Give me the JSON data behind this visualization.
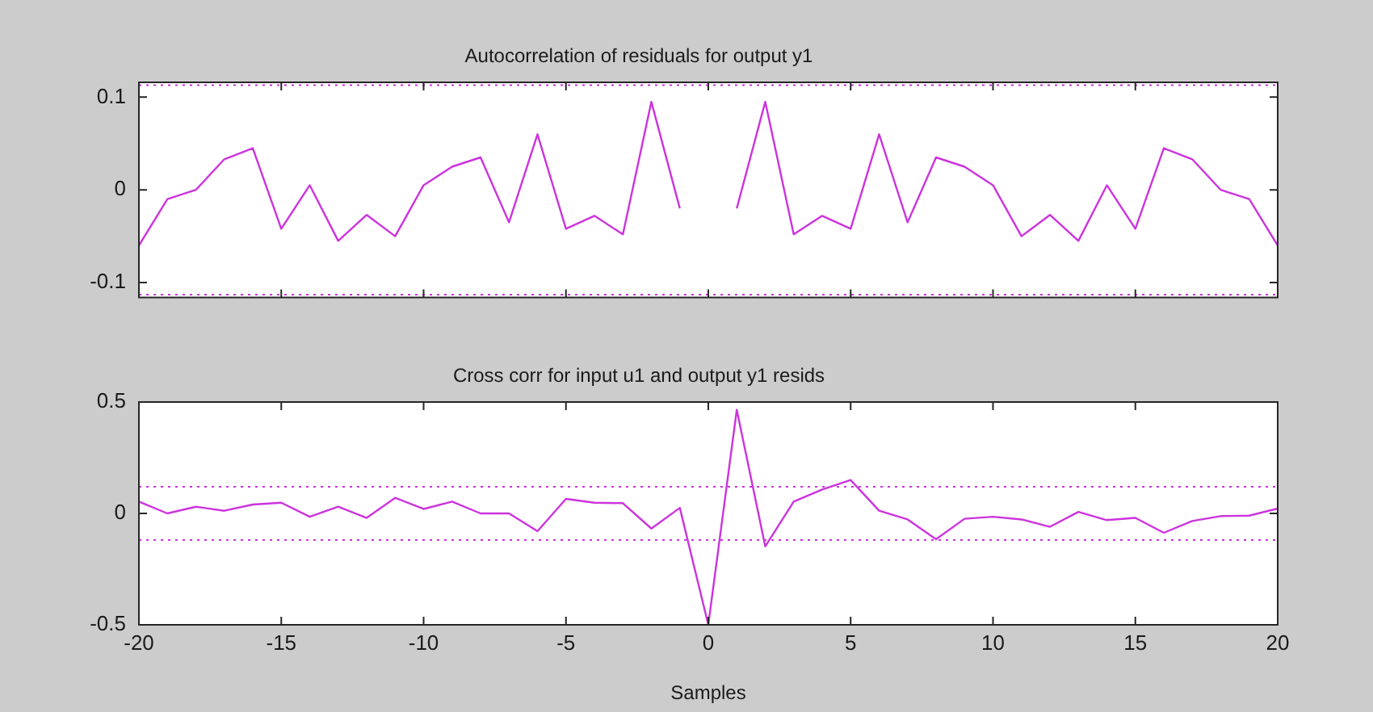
{
  "chart_data": [
    {
      "type": "line",
      "title": "Autocorrelation of residuals for output y1",
      "x": [
        -20,
        -19,
        -18,
        -17,
        -16,
        -15,
        -14,
        -13,
        -12,
        -11,
        -10,
        -9,
        -8,
        -7,
        -6,
        -5,
        -4,
        -3,
        -2,
        -1,
        0,
        1,
        2,
        3,
        4,
        5,
        6,
        7,
        8,
        9,
        10,
        11,
        12,
        13,
        14,
        15,
        16,
        17,
        18,
        19,
        20
      ],
      "series": [
        {
          "color": "#cc33dd",
          "values": [
            -0.06,
            -0.01,
            0,
            0.033,
            0.045,
            -0.042,
            0.005,
            -0.055,
            -0.027,
            -0.05,
            0.005,
            0.025,
            0.035,
            -0.035,
            0.06,
            -0.042,
            -0.028,
            -0.048,
            0.095,
            -0.02,
            null,
            -0.02,
            0.095,
            -0.048,
            -0.028,
            -0.042,
            0.06,
            -0.035,
            0.035,
            0.025,
            0.005,
            -0.05,
            -0.027,
            -0.055,
            0.005,
            -0.042,
            0.045,
            0.033,
            0,
            -0.01,
            -0.06
          ]
        }
      ],
      "xlim": [
        -20,
        20
      ],
      "xticks": [
        -20,
        -15,
        -10,
        -5,
        0,
        5,
        10,
        15,
        20
      ],
      "ylim": [
        -0.116,
        0.116
      ],
      "yticks": [
        -0.1,
        0,
        0.1
      ],
      "ref_lines": [
        {
          "axis": "y",
          "value": 0.113,
          "color": "#cc33dd",
          "line_style": "dotted"
        },
        {
          "axis": "y",
          "value": -0.113,
          "color": "#cc33dd",
          "line_style": "dotted"
        }
      ],
      "tick_labels": "y",
      "grid": false,
      "legend": false,
      "marker": "none",
      "line_style": "solid"
    },
    {
      "type": "line",
      "title": "Cross corr for input u1 and output y1 resids",
      "xlabel": "Samples",
      "x": [
        -20,
        -19,
        -18,
        -17,
        -16,
        -15,
        -14,
        -13,
        -12,
        -11,
        -10,
        -9,
        -8,
        -7,
        -6,
        -5,
        -4,
        -3,
        -2,
        -1,
        0,
        1,
        2,
        3,
        4,
        5,
        6,
        7,
        8,
        9,
        10,
        11,
        12,
        13,
        14,
        15,
        16,
        17,
        18,
        19,
        20
      ],
      "series": [
        {
          "color": "#cc33dd",
          "values": [
            0.053,
            0,
            0.03,
            0.012,
            0.04,
            0.048,
            -0.015,
            0.03,
            -0.02,
            0.07,
            0.02,
            0.053,
            0,
            0,
            -0.08,
            0.065,
            0.048,
            0.046,
            -0.068,
            0.025,
            -0.5,
            0.465,
            -0.148,
            0.053,
            0.107,
            0.15,
            0.012,
            -0.027,
            -0.116,
            -0.024,
            -0.015,
            -0.027,
            -0.06,
            0.007,
            -0.03,
            -0.02,
            -0.087,
            -0.034,
            -0.012,
            -0.01,
            0.022
          ]
        }
      ],
      "xlim": [
        -20,
        20
      ],
      "xticks": [
        -20,
        -15,
        -10,
        -5,
        0,
        5,
        10,
        15,
        20
      ],
      "ylim": [
        -0.5,
        0.5
      ],
      "yticks": [
        -0.5,
        0,
        0.5
      ],
      "ref_lines": [
        {
          "axis": "y",
          "value": 0.12,
          "color": "#cc33dd",
          "line_style": "dotted"
        },
        {
          "axis": "y",
          "value": -0.12,
          "color": "#cc33dd",
          "line_style": "dotted"
        }
      ],
      "grid": false,
      "legend": false,
      "marker": "none",
      "line_style": "solid"
    }
  ]
}
